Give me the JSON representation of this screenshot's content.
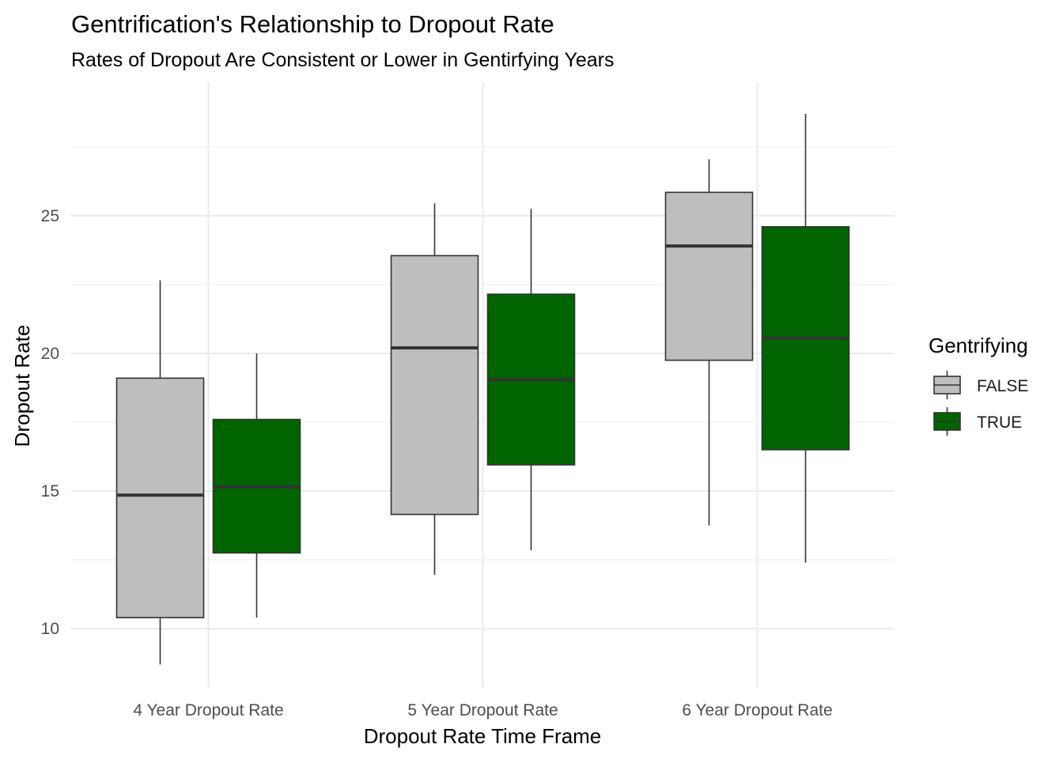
{
  "chart_data": {
    "type": "boxplot",
    "title": "Gentrification's Relationship to Dropout Rate",
    "subtitle": "Rates of Dropout Are Consistent or Lower in Gentirfying Years",
    "xlabel": "Dropout Rate Time Frame",
    "ylabel": "Dropout Rate",
    "categories": [
      "4 Year Dropout Rate",
      "5 Year Dropout Rate",
      "6 Year Dropout Rate"
    ],
    "yticks": [
      10,
      15,
      20,
      25
    ],
    "ylim": [
      7.85,
      29.85
    ],
    "grid": true,
    "legend": {
      "title": "Gentrifying",
      "position": "right"
    },
    "series": [
      {
        "name": "FALSE",
        "color": "#bebebe",
        "boxes": [
          {
            "whisker_low": 8.7,
            "q1": 10.4,
            "median": 14.85,
            "q3": 19.1,
            "whisker_high": 22.65
          },
          {
            "whisker_low": 11.95,
            "q1": 14.15,
            "median": 20.2,
            "q3": 23.55,
            "whisker_high": 25.45
          },
          {
            "whisker_low": 13.75,
            "q1": 19.75,
            "median": 23.9,
            "q3": 25.85,
            "whisker_high": 27.05
          }
        ]
      },
      {
        "name": "TRUE",
        "color": "#006400",
        "boxes": [
          {
            "whisker_low": 10.4,
            "q1": 12.75,
            "median": 15.15,
            "q3": 17.6,
            "whisker_high": 20.0
          },
          {
            "whisker_low": 12.85,
            "q1": 15.95,
            "median": 19.05,
            "q3": 22.15,
            "whisker_high": 25.25
          },
          {
            "whisker_low": 12.4,
            "q1": 16.5,
            "median": 20.55,
            "q3": 24.6,
            "whisker_high": 28.7
          }
        ]
      }
    ]
  }
}
